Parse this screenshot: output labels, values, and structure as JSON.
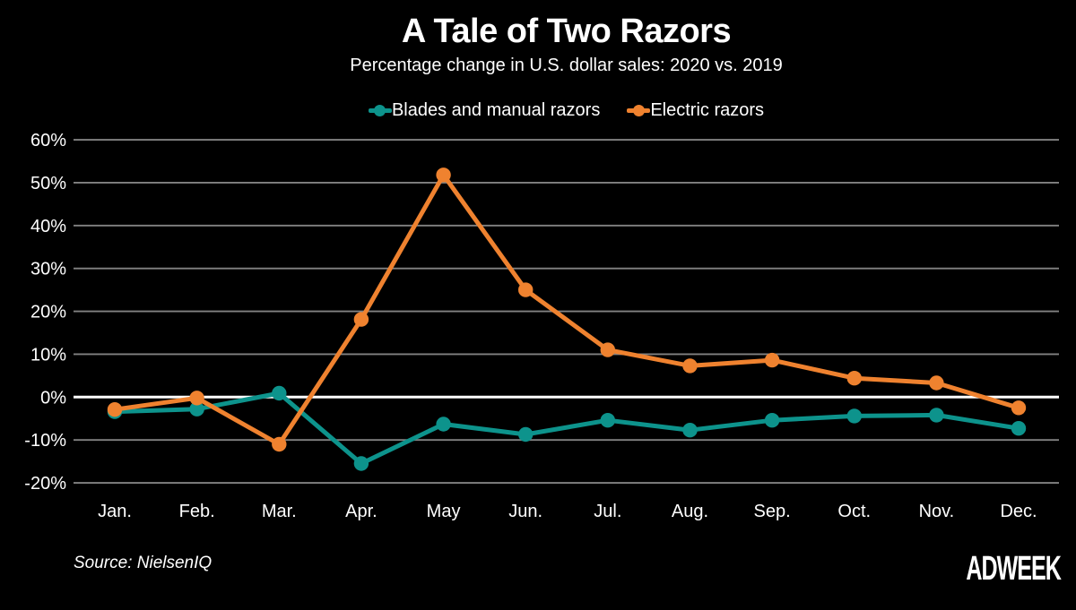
{
  "page": {
    "background": "#000000",
    "title": "A Tale of Two Razors",
    "subtitle": "Percentage change in U.S. dollar sales: 2020 vs. 2019",
    "source": "Source: NielsenIQ",
    "brand": "ADWEEK",
    "text_color": "#FFFFFF"
  },
  "chart_data": {
    "type": "line",
    "title": "A Tale of Two Razors",
    "subtitle": "Percentage change in U.S. dollar sales: 2020 vs. 2019",
    "categories": [
      "Jan.",
      "Feb.",
      "Mar.",
      "Apr.",
      "May",
      "Jun.",
      "Jul.",
      "Aug.",
      "Sep.",
      "Oct.",
      "Nov.",
      "Dec."
    ],
    "series": [
      {
        "name": "Blades and manual razors",
        "color": "#0D938C",
        "values": [
          -3.4,
          -2.8,
          0.9,
          -15.5,
          -6.3,
          -8.7,
          -5.4,
          -7.7,
          -5.4,
          -4.4,
          -4.2,
          -7.3
        ]
      },
      {
        "name": "Electric razors",
        "color": "#EF822F",
        "values": [
          -2.9,
          -0.2,
          -11.0,
          18.1,
          51.8,
          25.0,
          11.0,
          7.3,
          8.6,
          4.4,
          3.3,
          -2.5
        ]
      }
    ],
    "ylim": [
      -20,
      60
    ],
    "yticks": [
      60,
      50,
      40,
      30,
      20,
      10,
      0,
      -10,
      -20
    ],
    "ytick_suffix": "%",
    "grid": true,
    "gridline_color": "#828282",
    "zero_line": true,
    "zero_line_color": "#FFFFFF",
    "legend_position": "top",
    "marker": "circle",
    "background": "#000000"
  }
}
